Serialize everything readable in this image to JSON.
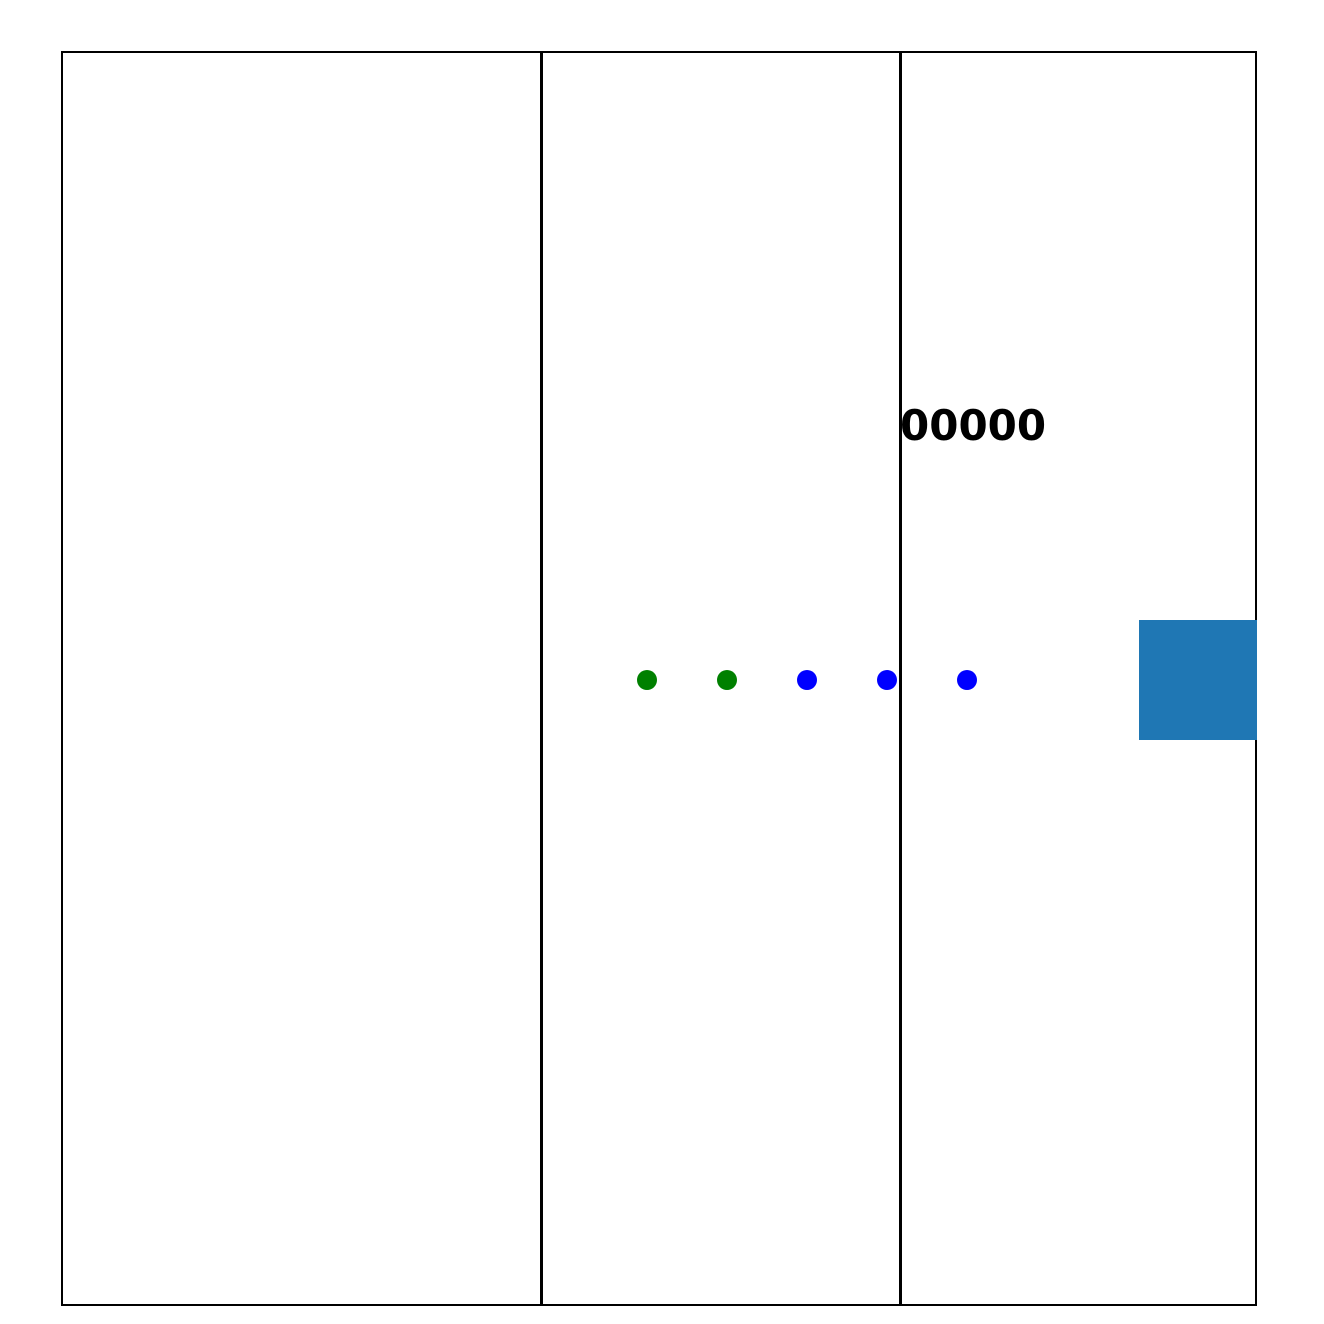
{
  "game": {
    "score": "00000",
    "trail": [
      {
        "color": "#008000",
        "kind": "green"
      },
      {
        "color": "#008000",
        "kind": "green"
      },
      {
        "color": "#0000ff",
        "kind": "blue"
      },
      {
        "color": "#0000ff",
        "kind": "blue"
      },
      {
        "color": "#0000ff",
        "kind": "blue"
      }
    ],
    "player_color": "#1f77b4",
    "lanes": 3
  }
}
